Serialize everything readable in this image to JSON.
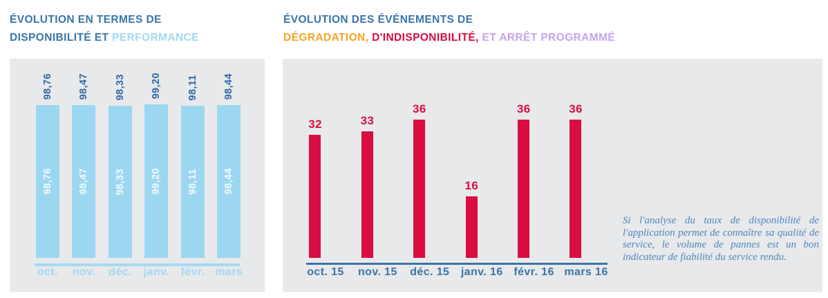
{
  "titles": {
    "left": {
      "line1": "ÉVOLUTION EN TERMES DE",
      "line2_dark": "DISPONIBILITÉ ET",
      "line2_light": "PERFORMANCE"
    },
    "right": {
      "line1": "ÉVOLUTION DES ÉVÉNEMENTS DE",
      "line2_orange": "DÉGRADATION,",
      "line2_red": "D'INDISPONIBILITÉ,",
      "line2_purple": "ET ARRÊT PROGRAMMÉ"
    }
  },
  "note": {
    "text": "Si l'analyse du taux de disponibilité de l'application permet de connaître sa qualité de service, le volume de pannes est un bon indicateur de fiabilité du service rendu."
  },
  "colors": {
    "title_blue": "#3a74ab",
    "light_blue": "#a4d9f2",
    "orange": "#f7a329",
    "red": "#d90d41",
    "purple": "#c7a3ee",
    "bar_blue": "#9bd7f1",
    "value_blue": "#2e68a6",
    "steel_blue": "#3c74a8",
    "note_blue": "#4d86c1",
    "panel_gray": "#e8e9ea"
  },
  "chart_data": [
    {
      "type": "bar",
      "title": "ÉVOLUTION EN TERMES DE DISPONIBILITÉ ET PERFORMANCE",
      "categories": [
        "oct.",
        "nov.",
        "déc.",
        "janv.",
        "févr.",
        "mars"
      ],
      "values": [
        98.76,
        98.47,
        98.33,
        99.2,
        98.11,
        98.44
      ],
      "value_labels": [
        "98,76",
        "98,47",
        "98,33",
        "99,20",
        "98,11",
        "98,44"
      ],
      "xlabel": "",
      "ylabel": "",
      "ylim": [
        0,
        100
      ],
      "grid": false,
      "legend": "none",
      "value_label_position": "rotated above bar and repeated in white inside bar",
      "bar_color": "#9bd7f1"
    },
    {
      "type": "bar",
      "title": "ÉVOLUTION DES ÉVÉNEMENTS DE DÉGRADATION, D'INDISPONIBILITÉ, ET ARRÊT PROGRAMMÉ",
      "categories": [
        "oct. 15",
        "nov. 15",
        "déc. 15",
        "janv. 16",
        "févr. 16",
        "mars 16"
      ],
      "values": [
        32,
        33,
        36,
        16,
        36,
        36
      ],
      "value_labels": [
        "32",
        "33",
        "36",
        "16",
        "36",
        "36"
      ],
      "xlabel": "",
      "ylabel": "",
      "ylim": [
        0,
        40
      ],
      "grid": false,
      "legend": "none",
      "value_label_position": "above bar",
      "bar_color": "#d90d41"
    }
  ]
}
